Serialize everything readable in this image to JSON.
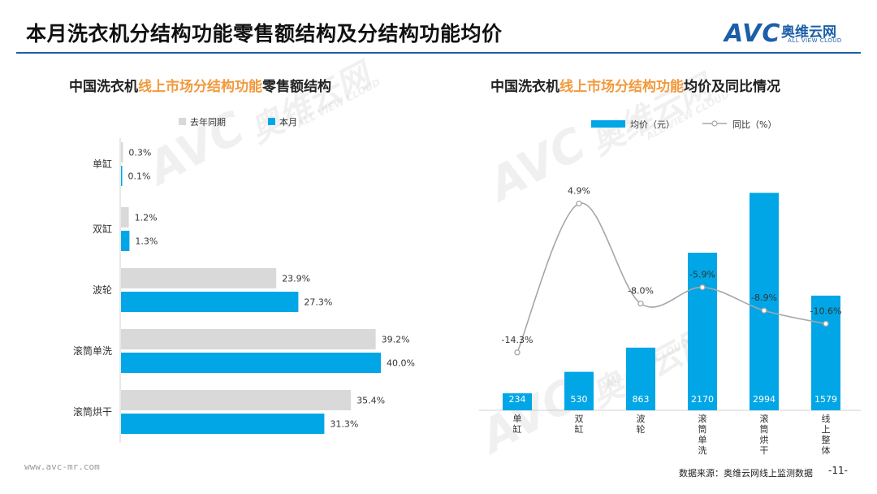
{
  "header": {
    "title": "本月洗衣机分结构功能零售额结构及分结构功能均价",
    "logo_mark": "AVC",
    "logo_cn": "奥维云网",
    "logo_en": "ALL VIEW CLOUD"
  },
  "watermark": {
    "mark": "AVC",
    "cn": "奥维云网",
    "en": "ALL VIEW CLOUD"
  },
  "left_chart": {
    "title_pre": "中国洗衣机",
    "title_hl": "线上市场分结构功能",
    "title_post": "零售额结构"
  },
  "right_chart": {
    "title_pre": "中国洗衣机",
    "title_hl": "线上市场分结构功能",
    "title_post": "均价及同比情况"
  },
  "footer": {
    "url": "www.avc-mr.com",
    "source": "数据来源：奥维云网线上监测数据",
    "page": "-11-"
  },
  "colors": {
    "blue": "#00a6e6",
    "gray": "#d9d9d9",
    "line": "#a6a6a6",
    "accent": "#f19a3e",
    "brand": "#1b5fa8"
  },
  "chart_data": [
    {
      "type": "bar",
      "orientation": "horizontal",
      "title": "中国洗衣机线上市场分结构功能零售额结构",
      "categories": [
        "单缸",
        "双缸",
        "波轮",
        "滚筒单洗",
        "滚筒烘干"
      ],
      "series": [
        {
          "name": "去年同期",
          "color": "#d9d9d9",
          "values": [
            0.3,
            1.2,
            23.9,
            39.2,
            35.4
          ],
          "labels": [
            "0.3%",
            "1.2%",
            "23.9%",
            "39.2%",
            "35.4%"
          ]
        },
        {
          "name": "本月",
          "color": "#00a6e6",
          "values": [
            0.1,
            1.3,
            27.3,
            40.0,
            31.3
          ],
          "labels": [
            "0.1%",
            "1.3%",
            "27.3%",
            "40.0%",
            "31.3%"
          ]
        }
      ],
      "legend": "top",
      "xlim": [
        0,
        45
      ]
    },
    {
      "type": "bar",
      "title": "中国洗衣机线上市场分结构功能均价及同比情况",
      "categories": [
        "单缸",
        "双缸",
        "波轮",
        "滚筒单洗",
        "滚筒烘干",
        "线上整体"
      ],
      "series": [
        {
          "name": "均价（元）",
          "kind": "bar",
          "color": "#00a6e6",
          "values": [
            234,
            530,
            863,
            2170,
            2994,
            1579
          ],
          "labels": [
            "234",
            "530",
            "863",
            "2170",
            "2994",
            "1579"
          ]
        },
        {
          "name": "同比（%）",
          "kind": "line",
          "color": "#a6a6a6",
          "values": [
            -14.3,
            4.9,
            -8.0,
            -5.9,
            -8.9,
            -10.6
          ],
          "labels": [
            "-14.3%",
            "4.9%",
            "-8.0%",
            "-5.9%",
            "-8.9%",
            "-10.6%"
          ]
        }
      ],
      "legend": "top",
      "ylim": [
        0,
        3300
      ],
      "y2lim": [
        -16,
        6
      ]
    }
  ]
}
